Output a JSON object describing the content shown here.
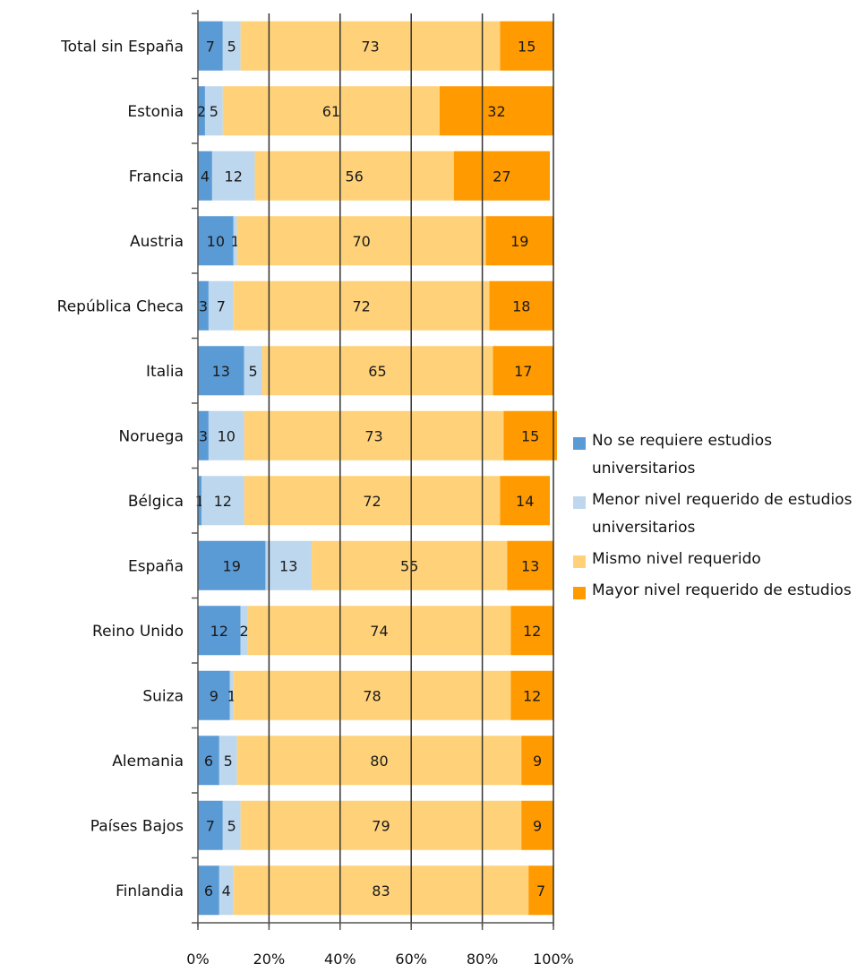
{
  "chart_data": {
    "type": "bar",
    "orientation": "horizontal",
    "stacked": "percent",
    "categories": [
      "Total sin España",
      "Estonia",
      "Francia",
      "Austria",
      "República Checa",
      "Italia",
      "Noruega",
      "Bélgica",
      "España",
      "Reino Unido",
      "Suiza",
      "Alemania",
      "Países Bajos",
      "Finlandia"
    ],
    "series": [
      {
        "name": "No se requiere estudios universitarios",
        "color": "#5b9bd5",
        "values": [
          7,
          2,
          4,
          10,
          3,
          13,
          3,
          1,
          19,
          12,
          9,
          6,
          7,
          6
        ]
      },
      {
        "name": "Menor nivel requerido de estudios universitarios",
        "color": "#bdd7ee",
        "values": [
          5,
          5,
          12,
          1,
          7,
          5,
          10,
          12,
          13,
          2,
          1,
          5,
          5,
          4
        ]
      },
      {
        "name": "Mismo nivel requerido",
        "color": "#ffd27a",
        "values": [
          73,
          61,
          56,
          70,
          72,
          65,
          73,
          72,
          55,
          74,
          78,
          80,
          79,
          83
        ]
      },
      {
        "name": "Mayor nivel requerido de estudios",
        "color": "#ff9a00",
        "values": [
          15,
          32,
          27,
          19,
          18,
          17,
          15,
          14,
          13,
          12,
          12,
          9,
          9,
          7
        ]
      }
    ],
    "xlim": [
      0,
      100
    ],
    "ticks": [
      "0%",
      "20%",
      "40%",
      "60%",
      "80%",
      "100%"
    ],
    "grid": true,
    "legend_position": "right",
    "title": "",
    "xlabel": "",
    "ylabel": ""
  },
  "legend": {
    "items": [
      {
        "text": "No se requiere estudios universitarios",
        "color": "#5b9bd5"
      },
      {
        "text": "Menor nivel requerido de estudios universitarios",
        "color": "#bdd7ee"
      },
      {
        "text": "Mismo nivel requerido",
        "color": "#ffd27a"
      },
      {
        "text": "Mayor nivel requerido de estudios",
        "color": "#ff9a00"
      }
    ]
  }
}
